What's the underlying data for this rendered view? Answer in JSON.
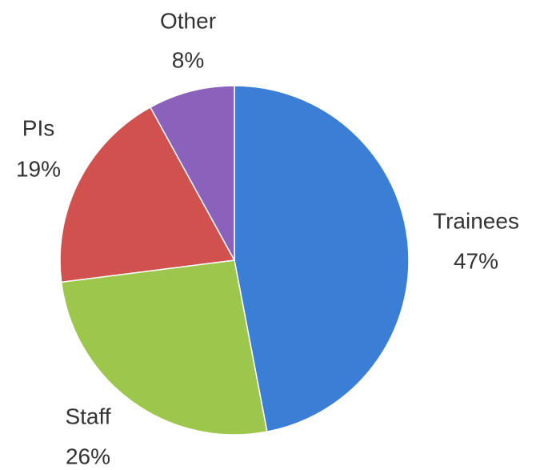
{
  "chart_data": {
    "type": "pie",
    "categories": [
      "Trainees",
      "Staff",
      "PIs",
      "Other"
    ],
    "values": [
      47,
      26,
      19,
      8
    ],
    "value_labels": [
      "47%",
      "26%",
      "19%",
      "8%"
    ],
    "colors": [
      "#3b7ed6",
      "#9cc64c",
      "#d1514e",
      "#8a62bb"
    ]
  }
}
